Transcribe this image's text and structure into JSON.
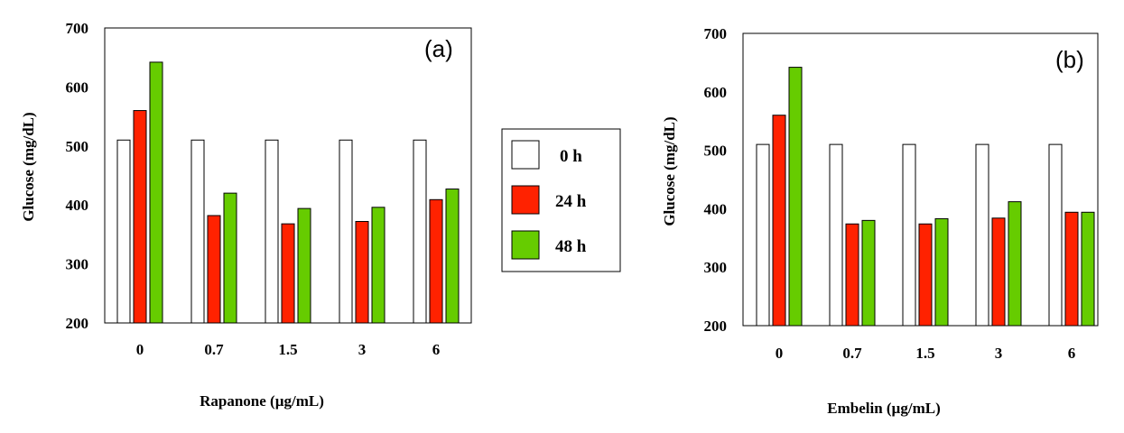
{
  "chart_data": [
    {
      "type": "bar",
      "panel_label": "(a)",
      "xlabel": "Rapanone  (µg/mL)",
      "ylabel": "Glucose  (mg/dL)",
      "ylim": [
        200,
        700
      ],
      "yticks": [
        200,
        300,
        400,
        500,
        600,
        700
      ],
      "categories": [
        "0",
        "0.7",
        "1.5",
        "3",
        "6"
      ],
      "series": [
        {
          "name": "0 h",
          "values": [
            510,
            510,
            510,
            510,
            510
          ]
        },
        {
          "name": "24 h",
          "values": [
            560,
            382,
            368,
            372,
            409
          ]
        },
        {
          "name": "48 h",
          "values": [
            642,
            420,
            394,
            396,
            427
          ]
        }
      ]
    },
    {
      "type": "bar",
      "panel_label": "(b)",
      "xlabel": "Embelin  (µg/mL)",
      "ylabel": "Glucose  (mg/dL)",
      "ylim": [
        200,
        700
      ],
      "yticks": [
        200,
        300,
        400,
        500,
        600,
        700
      ],
      "categories": [
        "0",
        "0.7",
        "1.5",
        "3",
        "6"
      ],
      "series": [
        {
          "name": "0 h",
          "values": [
            510,
            510,
            510,
            510,
            510
          ]
        },
        {
          "name": "24 h",
          "values": [
            560,
            374,
            374,
            384,
            394
          ]
        },
        {
          "name": "48 h",
          "values": [
            642,
            380,
            383,
            412,
            394
          ]
        }
      ]
    }
  ],
  "legend": {
    "items": [
      {
        "label": "0 h",
        "color": "#ffffff"
      },
      {
        "label": "24 h",
        "color": "#ff2200"
      },
      {
        "label": "48 h",
        "color": "#66cc00"
      }
    ]
  },
  "colors": {
    "0 h": "#ffffff",
    "24 h": "#ff2200",
    "48 h": "#66cc00"
  }
}
